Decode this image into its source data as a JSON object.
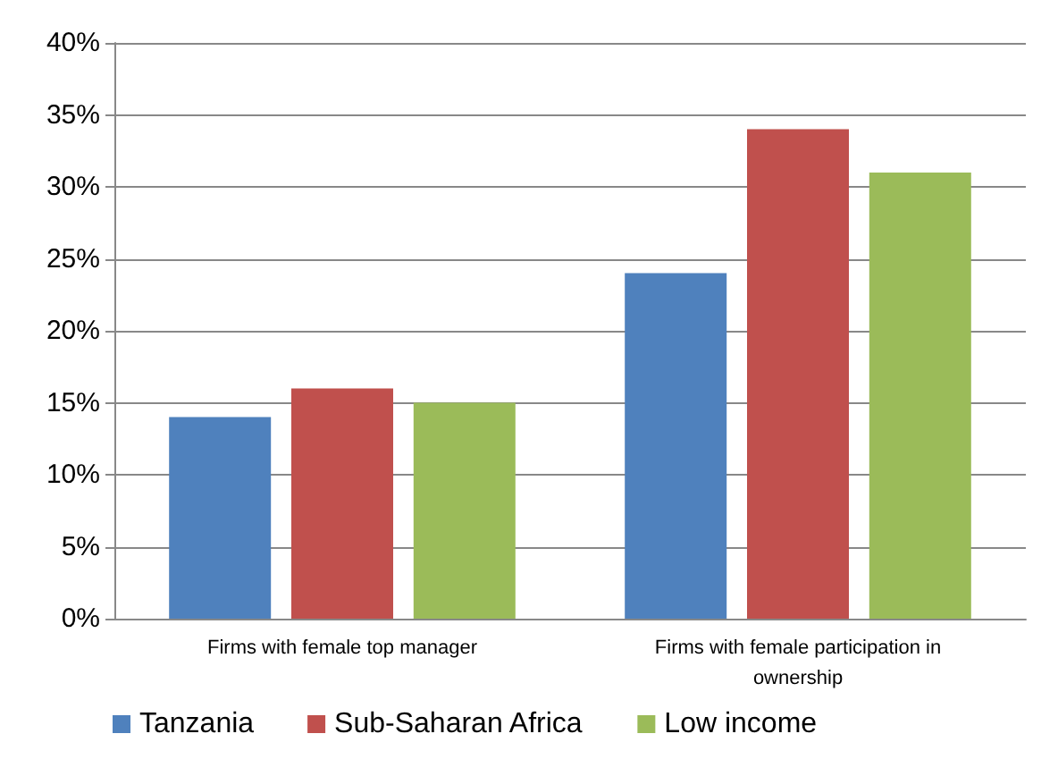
{
  "chart_data": {
    "type": "bar",
    "categories": [
      "Firms with female top manager",
      "Firms with female participation in ownership"
    ],
    "series": [
      {
        "name": "Tanzania",
        "color": "#4f81bd",
        "values": [
          14,
          24
        ]
      },
      {
        "name": "Sub-Saharan Africa",
        "color": "#c0504d",
        "values": [
          16,
          34
        ]
      },
      {
        "name": "Low income",
        "color": "#9bbb59",
        "values": [
          15,
          31
        ]
      }
    ],
    "ylim": [
      0,
      40
    ],
    "yticks": [
      {
        "value": 0,
        "label": "0%"
      },
      {
        "value": 5,
        "label": "5%"
      },
      {
        "value": 10,
        "label": "10%"
      },
      {
        "value": 15,
        "label": "15%"
      },
      {
        "value": 20,
        "label": "20%"
      },
      {
        "value": 25,
        "label": "25%"
      },
      {
        "value": 30,
        "label": "30%"
      },
      {
        "value": 35,
        "label": "35%"
      },
      {
        "value": 40,
        "label": "40%"
      }
    ],
    "grid": "y",
    "legend": "bottom left"
  }
}
